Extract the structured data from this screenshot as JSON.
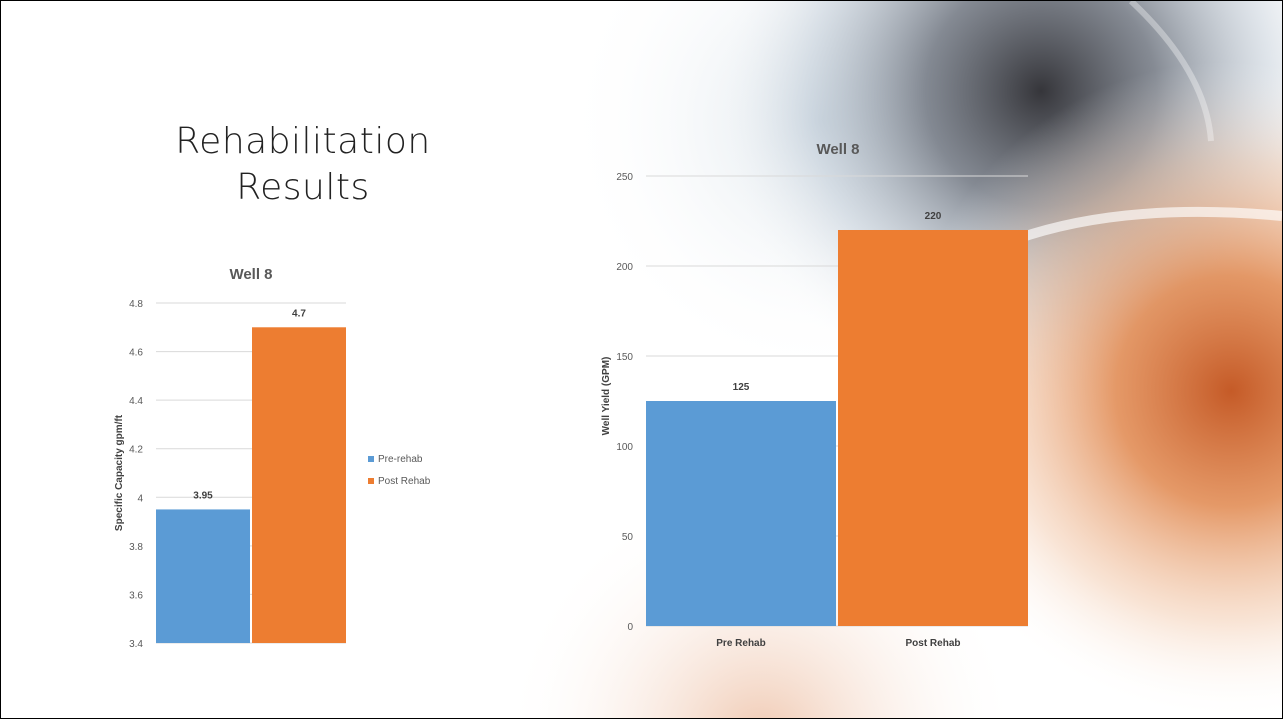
{
  "slide": {
    "title_line1": "Rehabilitation",
    "title_line2": "Results"
  },
  "colors": {
    "pre": "#5b9bd5",
    "post": "#ed7d31",
    "grid": "#d9d9d9",
    "tick_text": "#595959",
    "title_text": "#595959"
  },
  "chart_data": [
    {
      "type": "bar",
      "title": "Well 8",
      "categories": [
        ""
      ],
      "series": [
        {
          "name": "Pre-rehab",
          "values": [
            3.95
          ]
        },
        {
          "name": "Post Rehab",
          "values": [
            4.7
          ]
        }
      ],
      "data_labels": [
        "3.95",
        "4.7"
      ],
      "ylabel": "Specific Capacity gpm/ft",
      "ylim": [
        3.4,
        4.8
      ],
      "yticks": [
        "3.4",
        "3.6",
        "3.8",
        "4",
        "4.2",
        "4.4",
        "4.6",
        "4.8"
      ],
      "ytick_values": [
        3.4,
        3.6,
        3.8,
        4.0,
        4.2,
        4.4,
        4.6,
        4.8
      ],
      "grid": true,
      "legend": "right"
    },
    {
      "type": "bar",
      "title": "Well 8",
      "categories": [
        "Pre Rehab",
        "Post Rehab"
      ],
      "values": [
        125,
        220
      ],
      "data_labels": [
        "125",
        "220"
      ],
      "ylabel": "Well Yield (GPM)",
      "ylim": [
        0,
        250
      ],
      "yticks": [
        "0",
        "50",
        "100",
        "150",
        "200",
        "250"
      ],
      "ytick_values": [
        0,
        50,
        100,
        150,
        200,
        250
      ],
      "grid": true,
      "legend": "none"
    }
  ]
}
